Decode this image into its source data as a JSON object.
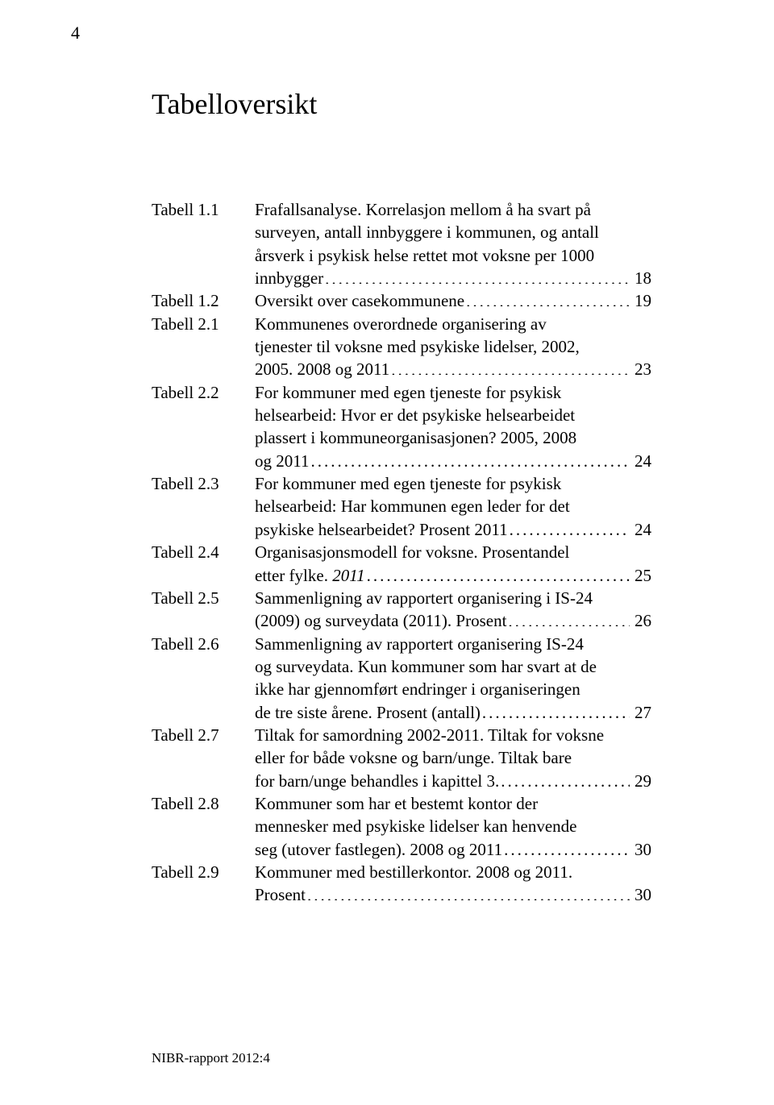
{
  "page_number": "4",
  "heading": "Tabelloversikt",
  "footer": "NIBR-rapport 2012:4",
  "toc": [
    {
      "label": "Tabell 1.1",
      "lines": [
        "Frafallsanalyse. Korrelasjon mellom å ha svart på",
        "surveyen, antall innbyggere i kommunen, og antall",
        "årsverk i psykisk helse rettet mot voksne per 1000"
      ],
      "tail": "innbygger",
      "page": "18"
    },
    {
      "label": "Tabell 1.2",
      "lines": [],
      "tail": "Oversikt over casekommunene",
      "page": "19"
    },
    {
      "label": "Tabell 2.1",
      "lines": [
        "Kommunenes overordnede organisering av",
        "tjenester til voksne med psykiske lidelser, 2002,"
      ],
      "tail": "2005. 2008 og 2011",
      "page": "23"
    },
    {
      "label": "Tabell 2.2",
      "lines": [
        "For kommuner med egen tjeneste for psykisk",
        "helsearbeid: Hvor er det psykiske helsearbeidet",
        "plassert i kommuneorganisasjonen? 2005, 2008"
      ],
      "tail": "og 2011",
      "page": "24"
    },
    {
      "label": "Tabell 2.3",
      "lines": [
        "For kommuner med egen tjeneste for psykisk",
        "helsearbeid: Har kommunen egen leder for det"
      ],
      "tail": "psykiske helsearbeidet? Prosent 2011",
      "page": "24"
    },
    {
      "label": "Tabell 2.4",
      "lines": [
        "Organisasjonsmodell for voksne. Prosentandel"
      ],
      "tail_prefix": "etter fylke. ",
      "tail_italic": "2011",
      "page": "25"
    },
    {
      "label": "Tabell 2.5",
      "lines": [
        "Sammenligning av rapportert organisering i IS-24"
      ],
      "tail": "(2009) og surveydata (2011). Prosent",
      "page": "26"
    },
    {
      "label": "Tabell 2.6",
      "lines": [
        "Sammenligning av rapportert organisering IS-24",
        "og surveydata. Kun kommuner som har svart at de",
        "ikke har gjennomført endringer i organiseringen"
      ],
      "tail": "de tre siste årene. Prosent (antall)",
      "page": "27"
    },
    {
      "label": "Tabell 2.7",
      "lines": [
        "Tiltak for samordning 2002-2011. Tiltak for voksne",
        "eller for både voksne og barn/unge. Tiltak bare"
      ],
      "tail": "for barn/unge behandles i kapittel 3.",
      "page": "29"
    },
    {
      "label": "Tabell 2.8",
      "lines": [
        "Kommuner som har et bestemt kontor der",
        "mennesker med psykiske lidelser kan henvende"
      ],
      "tail": "seg (utover fastlegen). 2008 og 2011",
      "page": "30"
    },
    {
      "label": "Tabell 2.9",
      "lines": [
        "Kommuner med bestillerkontor. 2008 og 2011."
      ],
      "tail": "Prosent",
      "page": "30"
    }
  ]
}
